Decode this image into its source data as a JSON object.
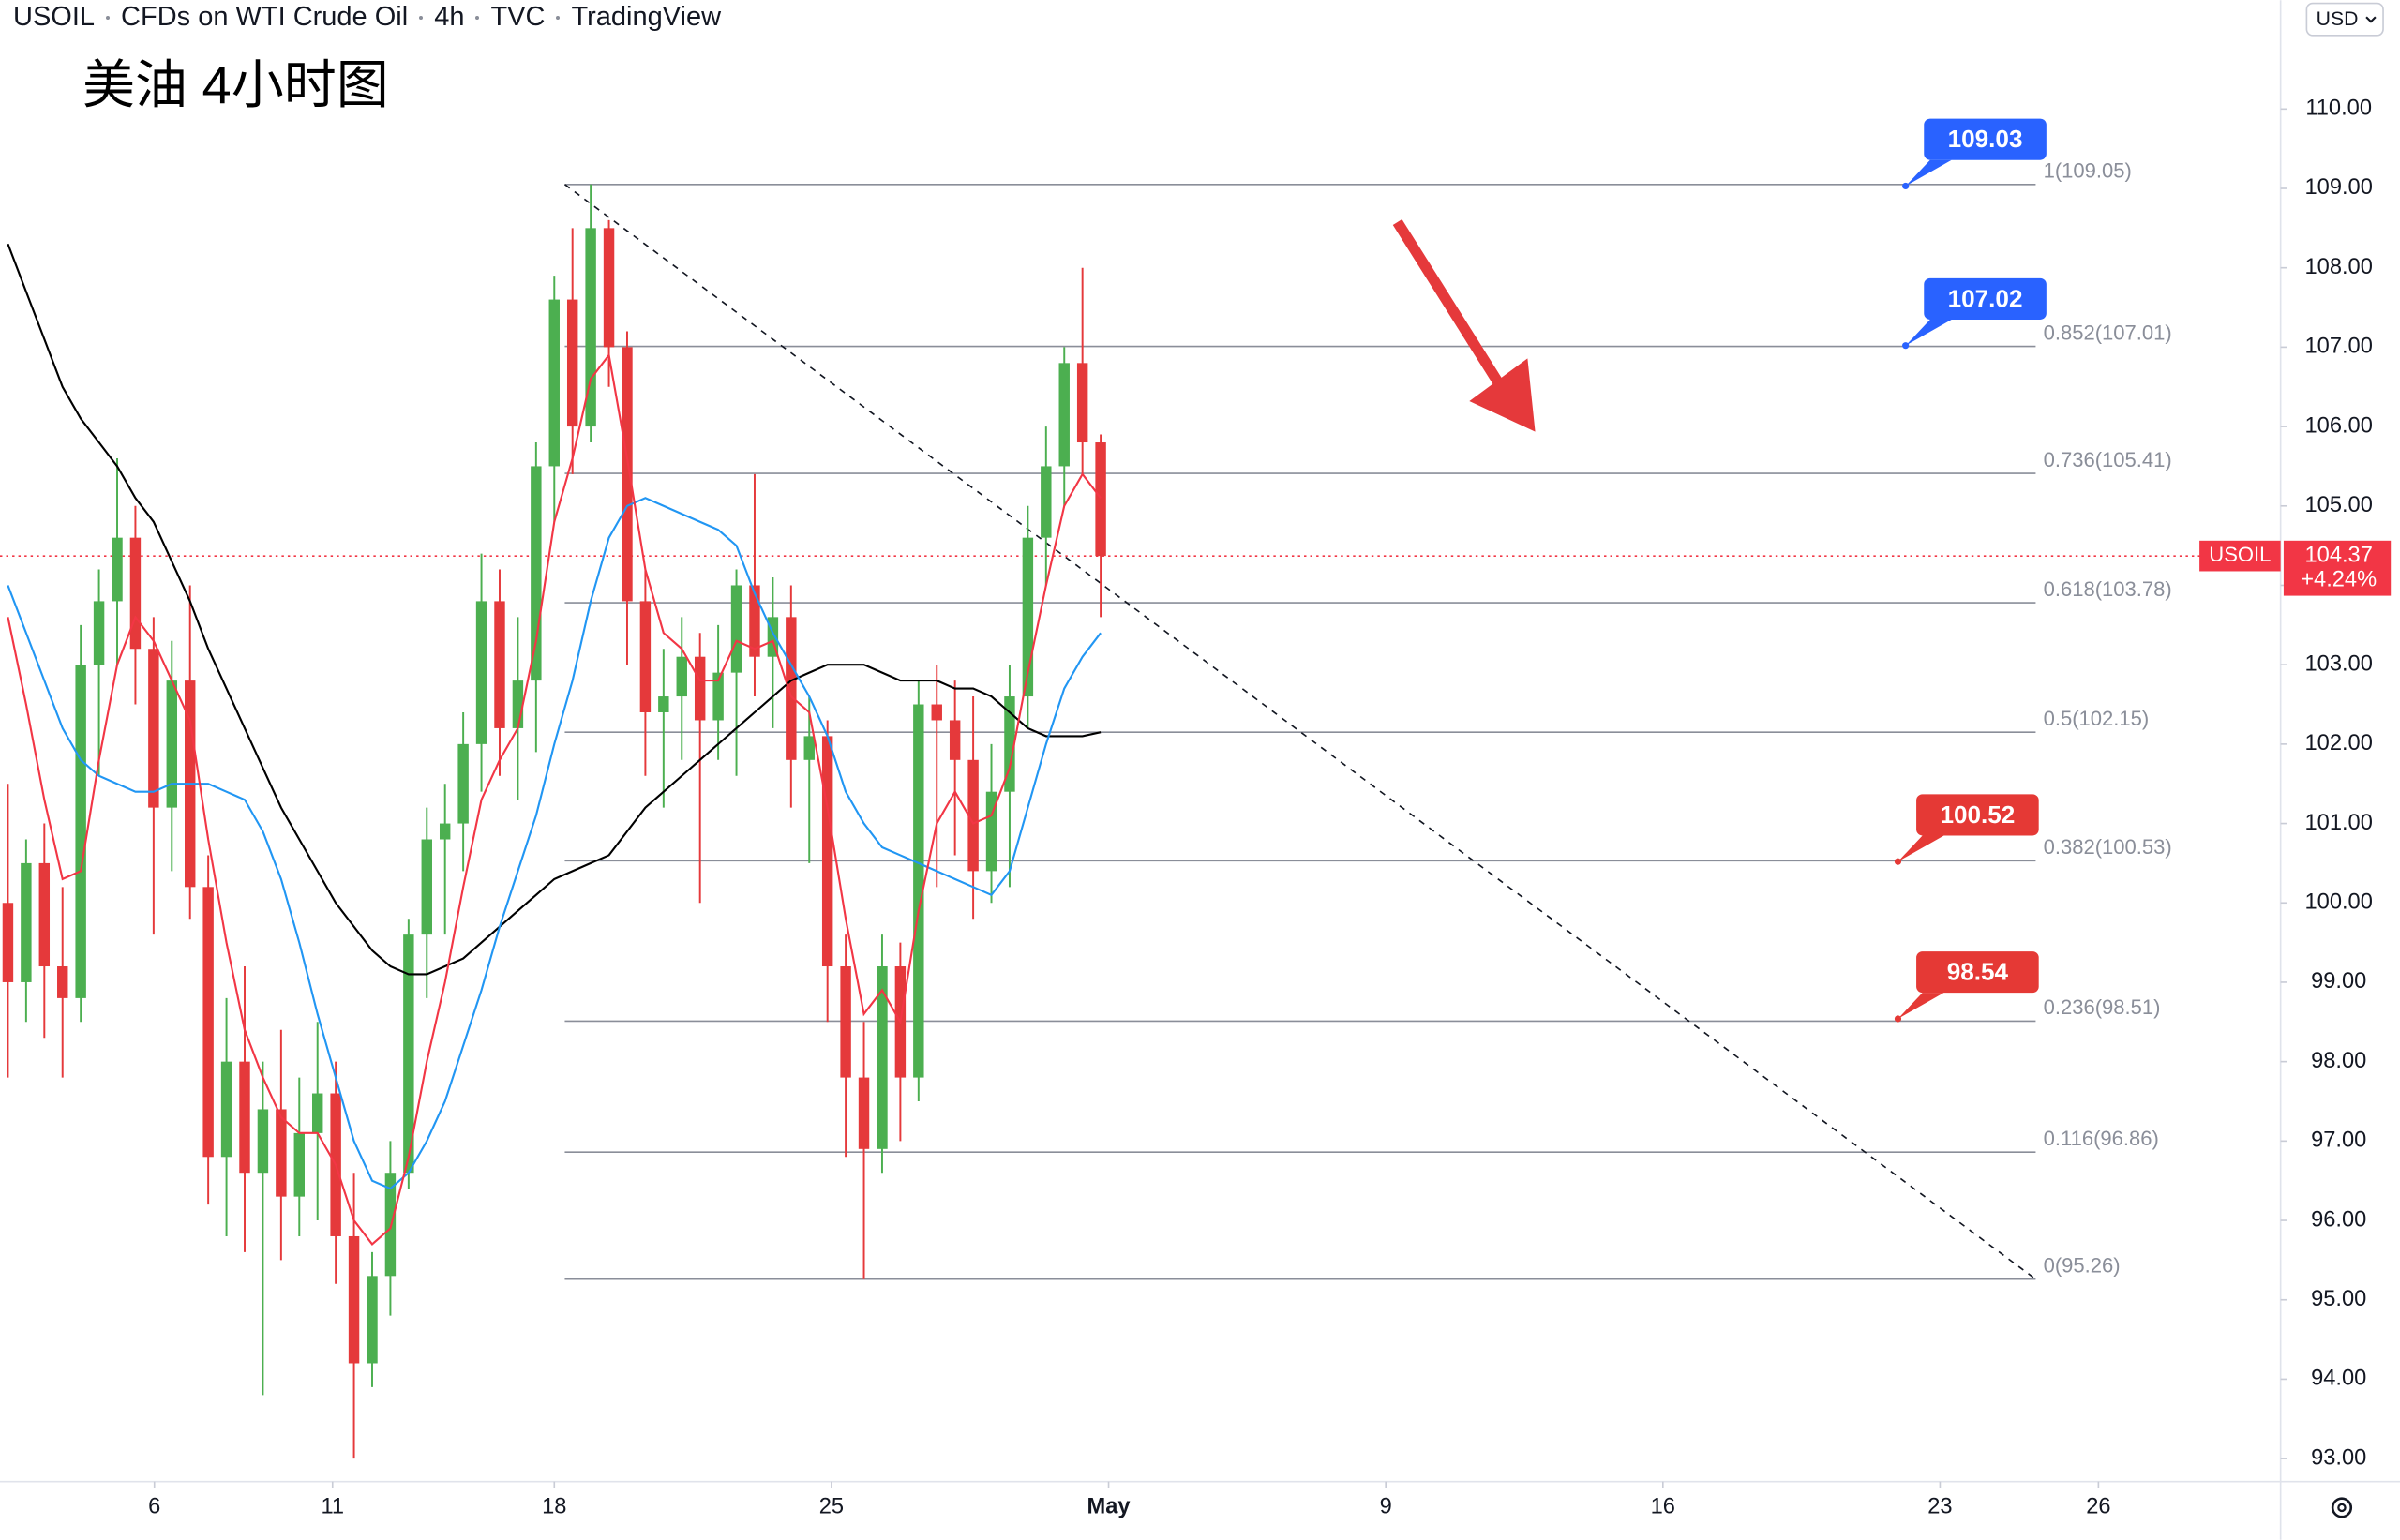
{
  "header": {
    "symbol": "USOIL",
    "parts": [
      "CFDs on WTI Crude Oil",
      "4h",
      "TVC",
      "TradingView"
    ]
  },
  "annotation_title": "美油 4小时图",
  "currency": "USD",
  "chart_data": {
    "type": "candlestick",
    "x": [
      4.2,
      4.66,
      5.12,
      5.58,
      6.04,
      6.5,
      6.96,
      7.42,
      7.88,
      8.34,
      8.8,
      9.26,
      9.72,
      10.18,
      10.64,
      11.1,
      11.56,
      12.02,
      12.48,
      12.94,
      13.4,
      13.86,
      14.32,
      14.78,
      15.24,
      15.7,
      16.16,
      16.62,
      17.08,
      17.54,
      18,
      18.46,
      18.92,
      19.38,
      19.84,
      20.3,
      20.76,
      21.22,
      21.68,
      22.14,
      22.6,
      23.06,
      23.52,
      23.98,
      24.44,
      24.9,
      25.36,
      25.82,
      26.28,
      26.74,
      27.2,
      27.66,
      28.12,
      28.58,
      29.04,
      29.5,
      29.96,
      30.42,
      30.88,
      31.34,
      31.8
    ],
    "open": [
      100,
      99,
      100.5,
      99.2,
      98.8,
      103,
      103.8,
      104.6,
      103.2,
      101.2,
      102.8,
      100.2,
      96.8,
      98,
      96.6,
      97.4,
      96.3,
      97.1,
      97.6,
      95.8,
      94.2,
      95.3,
      96.6,
      99.6,
      100.8,
      101,
      102,
      103.8,
      102.2,
      102.8,
      105.5,
      107.6,
      106,
      108.5,
      107,
      103.8,
      102.4,
      102.6,
      103.1,
      102.3,
      102.9,
      104,
      103.1,
      103.6,
      101.8,
      102.1,
      99.2,
      97.8,
      96.9,
      99.2,
      97.8,
      102.5,
      102.3,
      101.8,
      100.4,
      101.4,
      102.6,
      104.6,
      105.5,
      106.8,
      105.8
    ],
    "high": [
      101.5,
      100.8,
      101,
      100.2,
      103.5,
      104.2,
      105.6,
      105,
      103.6,
      103.3,
      104,
      100.6,
      98.8,
      99.2,
      98,
      98.4,
      97.8,
      98.5,
      98,
      96.6,
      95.6,
      97,
      99.8,
      101.2,
      101.5,
      102.4,
      104.4,
      104.2,
      103.6,
      105.8,
      107.9,
      108.5,
      109.05,
      108.6,
      107.2,
      104.2,
      103.2,
      103.6,
      103.4,
      103.5,
      104.2,
      105.4,
      104.1,
      104,
      102.6,
      102.3,
      99.6,
      98.5,
      99.6,
      99.5,
      102.8,
      103,
      102.8,
      102.6,
      102,
      103,
      105,
      106,
      107,
      108,
      105.9
    ],
    "low": [
      97.8,
      98.5,
      98.3,
      97.8,
      98.5,
      101.6,
      103,
      102.5,
      99.6,
      100.4,
      99.8,
      96.2,
      95.8,
      95.6,
      93.8,
      95.5,
      95.8,
      96,
      95.2,
      93,
      93.9,
      94.8,
      96.4,
      98.8,
      99.6,
      100.4,
      101.4,
      101.6,
      101.3,
      101.9,
      104.8,
      105.4,
      105.8,
      106.5,
      103,
      101.6,
      101.2,
      101.8,
      100,
      101.8,
      101.6,
      102.6,
      102.2,
      101.2,
      100.5,
      98.5,
      96.8,
      95.26,
      96.6,
      97,
      97.5,
      100.2,
      100.6,
      99.8,
      100,
      100.2,
      102.2,
      104,
      105,
      105.4,
      103.6
    ],
    "close": [
      99,
      100.5,
      99.2,
      98.8,
      103,
      103.8,
      104.6,
      103.2,
      101.2,
      102.8,
      100.2,
      96.8,
      98,
      96.6,
      97.4,
      96.3,
      97.1,
      97.6,
      95.8,
      94.2,
      95.3,
      96.6,
      99.6,
      100.8,
      101,
      102,
      103.8,
      102.2,
      102.8,
      105.5,
      107.6,
      106,
      108.5,
      107,
      103.8,
      102.4,
      102.6,
      103.1,
      102.3,
      102.9,
      104,
      103.1,
      103.6,
      101.8,
      102.1,
      99.2,
      97.8,
      96.9,
      99.2,
      97.8,
      102.5,
      102.3,
      101.8,
      100.4,
      101.4,
      102.6,
      104.6,
      105.5,
      106.8,
      105.8,
      104.37
    ],
    "up_color": "#4caf50",
    "down_color": "#e5393b",
    "overlays": [
      {
        "color": "#000000",
        "values": [
          108.3,
          107.7,
          107.1,
          106.5,
          106.1,
          105.8,
          105.5,
          105.1,
          104.8,
          104.3,
          103.8,
          103.2,
          102.7,
          102.2,
          101.7,
          101.2,
          100.8,
          100.4,
          100,
          99.7,
          99.4,
          99.2,
          99.1,
          99.1,
          99.2,
          99.3,
          99.5,
          99.7,
          99.9,
          100.1,
          100.3,
          100.4,
          100.5,
          100.6,
          100.9,
          101.2,
          101.4,
          101.6,
          101.8,
          102,
          102.2,
          102.4,
          102.6,
          102.8,
          102.9,
          103,
          103,
          103,
          102.9,
          102.8,
          102.8,
          102.8,
          102.7,
          102.7,
          102.6,
          102.4,
          102.2,
          102.1,
          102.1,
          102.1,
          102.15
        ]
      },
      {
        "color": "#2196f3",
        "values": [
          104,
          103.4,
          102.8,
          102.2,
          101.8,
          101.6,
          101.5,
          101.4,
          101.4,
          101.5,
          101.5,
          101.5,
          101.4,
          101.3,
          100.9,
          100.3,
          99.5,
          98.6,
          97.8,
          97,
          96.5,
          96.4,
          96.6,
          97,
          97.5,
          98.2,
          98.9,
          99.7,
          100.4,
          101.1,
          102,
          102.8,
          103.8,
          104.6,
          105,
          105.1,
          105,
          104.9,
          104.8,
          104.7,
          104.5,
          103.9,
          103.4,
          103,
          102.6,
          102.1,
          101.4,
          101,
          100.7,
          100.6,
          100.5,
          100.4,
          100.3,
          100.2,
          100.1,
          100.4,
          101.2,
          102,
          102.7,
          103.1,
          103.4
        ]
      },
      {
        "color": "#f23645",
        "values": [
          103.6,
          102.5,
          101.3,
          100.3,
          100.4,
          101.8,
          103,
          103.6,
          103.3,
          102.8,
          102.3,
          100.8,
          99.5,
          98.4,
          97.8,
          97.3,
          97.1,
          97.1,
          96.7,
          96,
          95.7,
          95.9,
          96.8,
          98,
          99,
          100.2,
          101.3,
          101.8,
          102.2,
          103.3,
          104.8,
          105.6,
          106.6,
          106.9,
          105.6,
          104.2,
          103.4,
          103.2,
          102.8,
          102.8,
          103.3,
          103.2,
          103.3,
          102.6,
          102.4,
          101.2,
          99.8,
          98.6,
          98.9,
          98.5,
          99.9,
          101,
          101.4,
          101,
          101.1,
          101.7,
          102.9,
          104,
          105,
          105.4,
          105.1
        ]
      }
    ],
    "xlim": [
      4,
      61.6
    ],
    "ylim": [
      92.71,
      111.37
    ],
    "xticks": [
      {
        "value": 7.9,
        "label": "6"
      },
      {
        "value": 12.4,
        "label": "11"
      },
      18,
      25,
      {
        "value": 32,
        "label": "May"
      },
      {
        "value": 39,
        "label": "9"
      },
      {
        "value": 46,
        "label": "16"
      },
      {
        "value": 53,
        "label": "23"
      },
      {
        "value": 57,
        "label": "26"
      }
    ],
    "yticks": [
      {
        "value": 93,
        "label": "93.00"
      },
      {
        "value": 94,
        "label": "94.00"
      },
      {
        "value": 95,
        "label": "95.00"
      },
      {
        "value": 96,
        "label": "96.00"
      },
      {
        "value": 97,
        "label": "97.00"
      },
      {
        "value": 98,
        "label": "98.00"
      },
      {
        "value": 99,
        "label": "99.00"
      },
      {
        "value": 100,
        "label": "100.00"
      },
      {
        "value": 101,
        "label": "101.00"
      },
      {
        "value": 102,
        "label": "102.00"
      },
      {
        "value": 103,
        "label": "103.00"
      },
      {
        "value": 104,
        "label": "104.00"
      },
      {
        "value": 105,
        "label": "105.00"
      },
      {
        "value": 106,
        "label": "106.00"
      },
      {
        "value": 107,
        "label": "107.00"
      },
      {
        "value": 108,
        "label": "108.00"
      },
      {
        "value": 109,
        "label": "109.00"
      },
      {
        "value": 110,
        "label": "110.00"
      }
    ],
    "fib_levels": [
      {
        "value": 109.05,
        "label": "1(109.05)"
      },
      {
        "value": 107.01,
        "label": "0.852(107.01)"
      },
      {
        "value": 105.41,
        "label": "0.736(105.41)"
      },
      {
        "value": 103.78,
        "label": "0.618(103.78)"
      },
      {
        "value": 102.15,
        "label": "0.5(102.15)"
      },
      {
        "value": 100.53,
        "label": "0.382(100.53)"
      },
      {
        "value": 98.51,
        "label": "0.236(98.51)"
      },
      {
        "value": 96.86,
        "label": "0.116(96.86)"
      },
      {
        "value": 95.26,
        "label": "0(95.26)"
      }
    ],
    "targets": [
      {
        "value": 109.03,
        "color": "#2962ff"
      },
      {
        "value": 107.02,
        "color": "#2962ff"
      },
      {
        "value": 100.52,
        "color": "#e53935"
      },
      {
        "value": 98.54,
        "color": "#e53935"
      }
    ],
    "last_price": {
      "symbol": "USOIL",
      "value": 104.37,
      "change": "+4.24%",
      "color": "#f23645"
    }
  }
}
